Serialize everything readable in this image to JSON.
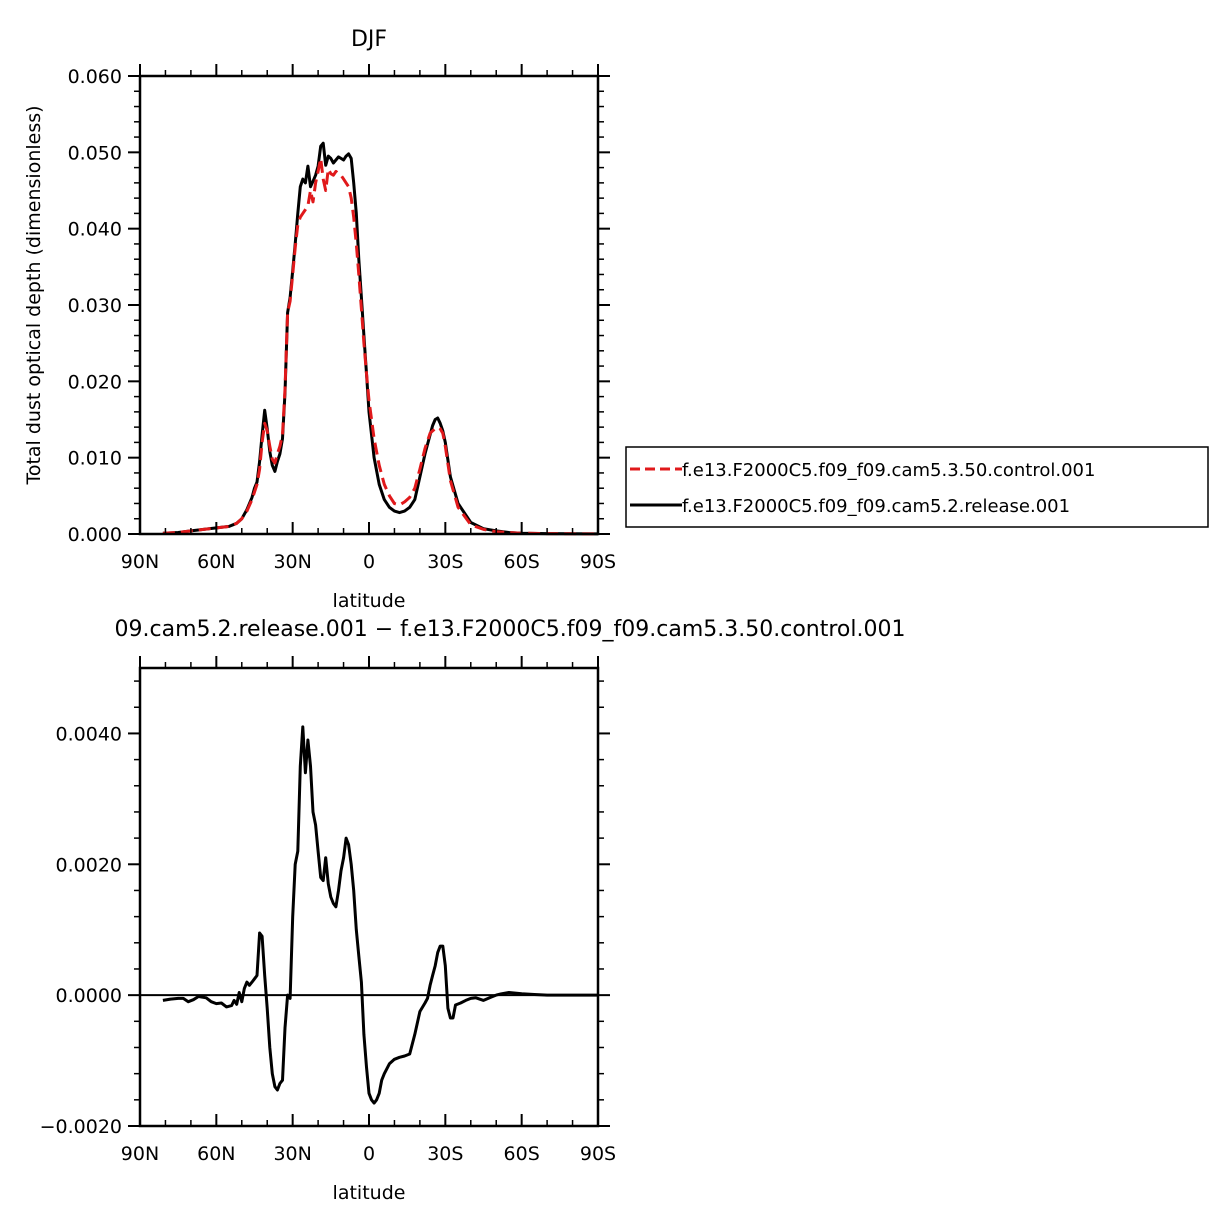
{
  "chart_data": [
    {
      "type": "line",
      "title": "DJF",
      "xlabel": "latitude",
      "ylabel": "Total dust optical depth (dimensionless)",
      "x_tick_labels": [
        "90N",
        "60N",
        "30N",
        "0",
        "30S",
        "60S",
        "90S"
      ],
      "x_ticks": [
        90,
        60,
        30,
        0,
        -30,
        -60,
        -90
      ],
      "xlim": [
        90,
        -90
      ],
      "y_tick_labels": [
        "0.000",
        "0.010",
        "0.020",
        "0.030",
        "0.040",
        "0.050",
        "0.060"
      ],
      "y_ticks": [
        0,
        0.01,
        0.02,
        0.03,
        0.04,
        0.05,
        0.06
      ],
      "ylim": [
        0,
        0.06
      ],
      "legend_position": "right",
      "series": [
        {
          "name": "f.e13.F2000C5.f09_f09.cam5.3.50.control.001",
          "color": "#e0191b",
          "style": "dashed",
          "x": [
            81,
            75,
            70,
            65,
            60,
            55,
            52,
            50,
            48,
            46,
            45,
            44,
            43,
            42,
            41,
            40,
            39,
            38,
            37,
            36,
            35,
            34,
            33,
            32,
            31,
            30,
            29,
            28,
            27,
            26,
            25,
            24,
            23,
            22,
            21,
            20,
            19,
            18,
            17,
            16,
            15,
            14,
            13,
            12,
            11,
            10,
            9,
            8,
            7,
            6,
            5,
            4,
            3,
            2,
            1,
            0,
            -2,
            -4,
            -6,
            -8,
            -10,
            -12,
            -14,
            -16,
            -18,
            -20,
            -22,
            -24,
            -25,
            -26,
            -27,
            -28,
            -29,
            -30,
            -32,
            -35,
            -40,
            -45,
            -50,
            -55,
            -60,
            -70,
            -80,
            -90
          ],
          "y": [
            0.0001,
            0.0002,
            0.0004,
            0.0006,
            0.0008,
            0.001,
            0.0014,
            0.002,
            0.003,
            0.0045,
            0.0055,
            0.0065,
            0.0085,
            0.012,
            0.0145,
            0.0135,
            0.0115,
            0.0098,
            0.0093,
            0.0105,
            0.0115,
            0.013,
            0.019,
            0.029,
            0.0305,
            0.034,
            0.0375,
            0.0405,
            0.0415,
            0.042,
            0.0425,
            0.043,
            0.045,
            0.0435,
            0.046,
            0.0475,
            0.0492,
            0.0465,
            0.045,
            0.0478,
            0.0472,
            0.047,
            0.0475,
            0.0472,
            0.047,
            0.0465,
            0.046,
            0.0455,
            0.044,
            0.0415,
            0.038,
            0.034,
            0.0295,
            0.025,
            0.021,
            0.0175,
            0.0125,
            0.009,
            0.0065,
            0.005,
            0.004,
            0.0038,
            0.0042,
            0.0048,
            0.006,
            0.0085,
            0.0112,
            0.0132,
            0.0135,
            0.0138,
            0.014,
            0.0138,
            0.0132,
            0.0115,
            0.007,
            0.0035,
            0.0012,
            0.0006,
            0.0003,
            0.0002,
            0.0001,
            5e-05,
            2e-05,
            1e-05
          ]
        },
        {
          "name": "f.e13.F2000C5.f09_f09.cam5.2.release.001",
          "color": "#000000",
          "style": "solid",
          "x": [
            81,
            75,
            70,
            65,
            60,
            55,
            52,
            50,
            48,
            46,
            45,
            44,
            43,
            42,
            41,
            40,
            39,
            38,
            37,
            36,
            35,
            34,
            33,
            32,
            31,
            30,
            29,
            28,
            27,
            26,
            25,
            24,
            23,
            22,
            21,
            20,
            19,
            18,
            17,
            16,
            15,
            14,
            13,
            12,
            11,
            10,
            9,
            8,
            7,
            6,
            5,
            4,
            3,
            2,
            1,
            0,
            -2,
            -4,
            -6,
            -8,
            -10,
            -12,
            -14,
            -16,
            -18,
            -20,
            -22,
            -24,
            -25,
            -26,
            -27,
            -28,
            -29,
            -30,
            -32,
            -35,
            -40,
            -45,
            -50,
            -55,
            -60,
            -70,
            -80,
            -90
          ],
          "y": [
            0.0001,
            0.0002,
            0.0004,
            0.0006,
            0.0008,
            0.001,
            0.0014,
            0.002,
            0.0032,
            0.0048,
            0.006,
            0.0068,
            0.0095,
            0.013,
            0.0162,
            0.0138,
            0.0108,
            0.009,
            0.0082,
            0.0095,
            0.0105,
            0.0125,
            0.0185,
            0.029,
            0.031,
            0.0345,
            0.038,
            0.042,
            0.0455,
            0.0465,
            0.046,
            0.0482,
            0.0455,
            0.0462,
            0.047,
            0.0482,
            0.0508,
            0.0512,
            0.0483,
            0.0495,
            0.0492,
            0.0486,
            0.049,
            0.0494,
            0.0492,
            0.049,
            0.0495,
            0.0498,
            0.0492,
            0.046,
            0.042,
            0.036,
            0.031,
            0.026,
            0.021,
            0.016,
            0.01,
            0.0065,
            0.0045,
            0.0035,
            0.003,
            0.0028,
            0.003,
            0.0035,
            0.0045,
            0.0075,
            0.0105,
            0.013,
            0.0142,
            0.015,
            0.0152,
            0.0145,
            0.0135,
            0.012,
            0.0075,
            0.004,
            0.0015,
            0.0007,
            0.0004,
            0.0002,
            0.0001,
            5e-05,
            2e-05,
            1e-05
          ]
        }
      ]
    },
    {
      "type": "line",
      "title": "09.cam5.2.release.001 − f.e13.F2000C5.f09_f09.cam5.3.50.control.001",
      "xlabel": "latitude",
      "ylabel": "",
      "x_tick_labels": [
        "90N",
        "60N",
        "30N",
        "0",
        "30S",
        "60S",
        "90S"
      ],
      "x_ticks": [
        90,
        60,
        30,
        0,
        -30,
        -60,
        -90
      ],
      "xlim": [
        90,
        -90
      ],
      "y_tick_labels": [
        "−0.0020",
        "0.0000",
        "0.0020",
        "0.0040"
      ],
      "y_ticks": [
        -0.002,
        0,
        0.002,
        0.004
      ],
      "ylim": [
        -0.002,
        0.005
      ],
      "series": [
        {
          "color": "#000000",
          "style": "solid",
          "x": [
            81,
            78,
            75,
            73,
            71,
            69,
            67,
            64,
            62,
            60,
            58,
            56,
            54,
            53,
            52,
            51,
            50,
            49,
            48,
            47,
            46,
            45,
            44,
            43,
            42,
            41,
            40,
            39,
            38,
            37,
            36,
            35,
            34,
            33,
            32,
            31,
            30,
            29,
            28,
            27,
            26,
            25,
            24,
            23,
            22,
            21,
            20,
            19,
            18,
            17,
            16,
            15,
            14,
            13,
            12,
            11,
            10,
            9,
            8,
            7,
            6,
            5,
            4,
            3,
            2,
            1,
            0,
            -1,
            -2,
            -3,
            -4,
            -5,
            -6,
            -8,
            -10,
            -12,
            -14,
            -16,
            -18,
            -20,
            -22,
            -23,
            -24,
            -25,
            -26,
            -27,
            -28,
            -29,
            -30,
            -31,
            -32,
            -33,
            -34,
            -36,
            -38,
            -40,
            -42,
            -45,
            -48,
            -50,
            -52,
            -55,
            -58,
            -60,
            -65,
            -70,
            -75,
            -80,
            -85,
            -90
          ],
          "y": [
            -8e-05,
            -6e-05,
            -5e-05,
            -5e-05,
            -0.0001,
            -7e-05,
            -2e-05,
            -4e-05,
            -0.0001,
            -0.00013,
            -0.00012,
            -0.00018,
            -0.00016,
            -8e-05,
            -0.00014,
            4e-05,
            -0.0001,
            0.0001,
            0.0002,
            0.00015,
            0.0002,
            0.00025,
            0.0003,
            0.00095,
            0.0009,
            0.0003,
            -0.0002,
            -0.0008,
            -0.0012,
            -0.0014,
            -0.00145,
            -0.00135,
            -0.0013,
            -0.0005,
            0.0,
            -5e-05,
            0.0012,
            0.002,
            0.0022,
            0.0035,
            0.0041,
            0.0034,
            0.0039,
            0.0035,
            0.0028,
            0.0026,
            0.0022,
            0.0018,
            0.00175,
            0.0021,
            0.0017,
            0.0015,
            0.0014,
            0.00135,
            0.0016,
            0.0019,
            0.0021,
            0.0024,
            0.0023,
            0.002,
            0.0016,
            0.001,
            0.0006,
            0.0002,
            -0.0006,
            -0.0011,
            -0.0015,
            -0.0016,
            -0.00165,
            -0.0016,
            -0.0015,
            -0.0013,
            -0.0012,
            -0.00105,
            -0.00098,
            -0.00095,
            -0.00093,
            -0.0009,
            -0.0006,
            -0.00025,
            -0.00012,
            -5e-05,
            0.00015,
            0.0003,
            0.00045,
            0.00065,
            0.00075,
            0.00075,
            0.00045,
            -0.0002,
            -0.00035,
            -0.00035,
            -0.00015,
            -0.00012,
            -8e-05,
            -5e-05,
            -4e-05,
            -8e-05,
            -3e-05,
            0.0,
            2e-05,
            4e-05,
            3e-05,
            2e-05,
            1e-05,
            0.0,
            0.0,
            0.0,
            0.0,
            0.0
          ]
        }
      ]
    }
  ]
}
